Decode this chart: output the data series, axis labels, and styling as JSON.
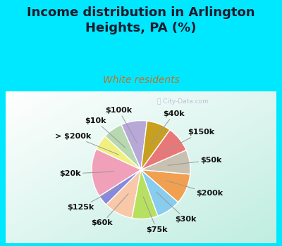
{
  "title": "Income distribution in Arlington\nHeights, PA (%)",
  "subtitle": "White residents",
  "watermark": "ⓘ City-Data.com",
  "labels": [
    "$100k",
    "$10k",
    "> $200k",
    "$20k",
    "$125k",
    "$60k",
    "$75k",
    "$30k",
    "$200k",
    "$50k",
    "$150k",
    "$40k"
  ],
  "values": [
    8.5,
    6.5,
    5.0,
    16.0,
    3.5,
    9.5,
    8.5,
    8.0,
    10.0,
    8.0,
    8.5,
    8.0
  ],
  "colors": [
    "#b8a8d8",
    "#b8d8b0",
    "#f0f080",
    "#f0a0b8",
    "#8888dd",
    "#f8c8a8",
    "#b8e060",
    "#88ccee",
    "#f0a050",
    "#c8c0b0",
    "#e87878",
    "#c8a020"
  ],
  "background_color": "#00e8ff",
  "title_color": "#1a1a2e",
  "subtitle_color": "#c07030",
  "label_color": "#111111",
  "title_fontsize": 13,
  "subtitle_fontsize": 10,
  "label_fontsize": 8,
  "startangle": 83
}
